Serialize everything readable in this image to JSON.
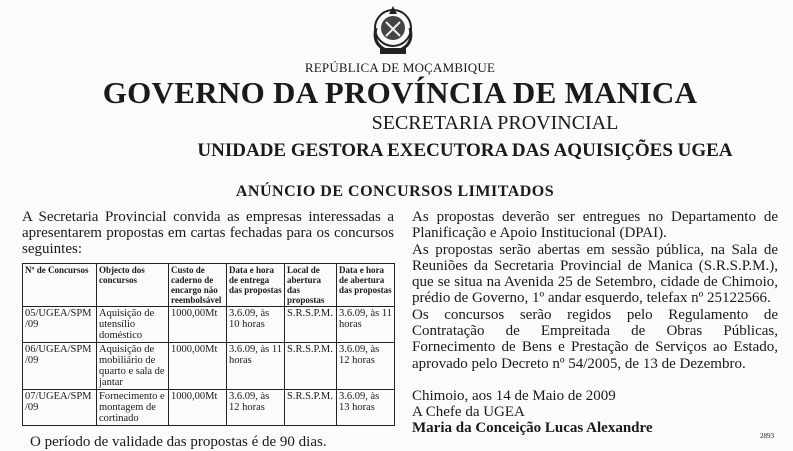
{
  "header": {
    "emblem_icon": "mozambique-coat-of-arms-icon",
    "republic": "REPÚBLICA DE MOÇAMBIQUE",
    "government": "GOVERNO DA PROVÍNCIA DE MANICA",
    "secretariat": "SECRETARIA PROVINCIAL",
    "unit": "UNIDADE GESTORA EXECUTORA DAS AQUISIÇÕES UGEA"
  },
  "announcement": {
    "title": "ANÚNCIO DE CONCURSOS LIMITADOS",
    "intro": "A Secretaria Provincial convida as empresas interessadas a apresentarem propostas em cartas fechadas para os concursos seguintes:",
    "table": {
      "headers": [
        "Nº de Concursos",
        "Objecto dos concursos",
        "Custo de caderno de encargo não reembolsável",
        "Data e hora de entrega das propostas",
        "Local de abertura das propostas",
        "Data e hora de abertura das propostas"
      ],
      "rows": [
        [
          "05/UGEA/SPM/09",
          "Aquisição de utensílio doméstico",
          "1000,00Mt",
          "3.6.09, às 10 horas",
          "S.R.S.P.M.",
          "3.6.09, às 11 horas"
        ],
        [
          "06/UGEA/SPM/09",
          "Aquisição de mobiliário de quarto e sala de jantar",
          "1000,00Mt",
          "3.6.09, às 11 horas",
          "S.R.S.P.M.",
          "3.6.09, às 12 horas"
        ],
        [
          "07/UGEA/SPM/09",
          "Fornecimento e montagem de cortinado",
          "1000,00Mt",
          "3.6.09, às 12 horas",
          "S.R.S.P.M.",
          "3.6.09, às 13 horas"
        ]
      ]
    },
    "validity": "O período de validade das propostas é de 90 dias.",
    "paragraphs": [
      "As propostas deverão ser entregues no Departamento de Planificação e Apoio Institucional (DPAI).",
      "As propostas serão abertas em sessão pública, na Sala de Reuniões da Secretaria Provincial de Manica (S.R.S.P.M.), que se situa na Avenida 25 de Setembro, cidade de Chimoio, prédio de Governo, 1º andar esquerdo, telefax nº 25122566.",
      "Os concursos serão regidos pelo Regulamento de Contratação de Empreitada de Obras Públicas, Fornecimento de Bens e Prestação de Serviços ao Estado, aprovado pelo Decreto nº 54/2005, de 13 de Dezembro."
    ],
    "place_date": "Chimoio, aos 14 de Maio de 2009",
    "signer_title": "A Chefe da UGEA",
    "signer_name": "Maria da Conceição Lucas Alexandre",
    "ref_number": "2893"
  }
}
